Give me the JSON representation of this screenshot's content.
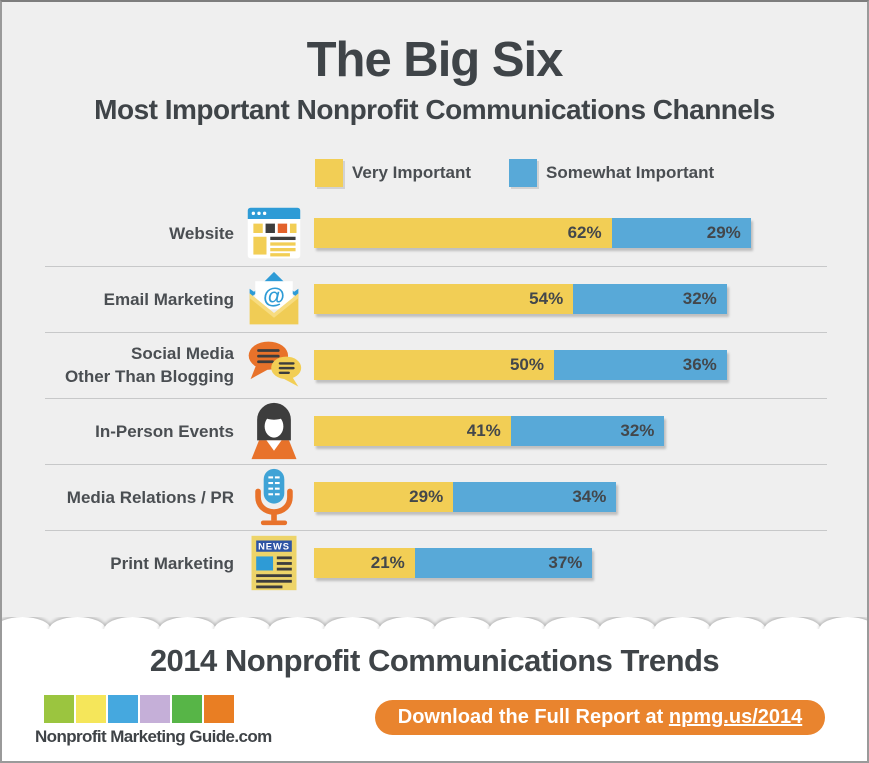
{
  "header": {
    "title": "The Big Six",
    "subtitle": "Most Important Nonprofit Communications Channels"
  },
  "chart_data": {
    "type": "bar",
    "orientation": "horizontal",
    "stacked": true,
    "unit": "percent",
    "title": "The Big Six",
    "subtitle": "Most Important Nonprofit Communications Channels",
    "grid": false,
    "legend_position": "top",
    "value_labels": "inside-right, suffixed with %",
    "xlim": [
      0,
      100
    ],
    "categories": [
      "Website",
      "Email Marketing",
      "Social Media Other Than Blogging",
      "In-Person Events",
      "Media Relations / PR",
      "Print Marketing"
    ],
    "series": [
      {
        "name": "Very Important",
        "color": "#F2CE55",
        "values": [
          62,
          54,
          50,
          41,
          29,
          21
        ]
      },
      {
        "name": "Somewhat Important",
        "color": "#58A9D8",
        "values": [
          29,
          32,
          36,
          32,
          34,
          37
        ]
      }
    ]
  },
  "rows": [
    {
      "label_lines": [
        "Website"
      ],
      "icon": "browser-icon"
    },
    {
      "label_lines": [
        "Email Marketing"
      ],
      "icon": "email-icon"
    },
    {
      "label_lines": [
        "Social Media",
        "Other Than Blogging"
      ],
      "icon": "speech-bubbles-icon"
    },
    {
      "label_lines": [
        "In-Person Events"
      ],
      "icon": "person-icon"
    },
    {
      "label_lines": [
        "Media Relations / PR"
      ],
      "icon": "microphone-icon"
    },
    {
      "label_lines": [
        "Print Marketing"
      ],
      "icon": "newspaper-icon"
    }
  ],
  "footer": {
    "title": "2014 Nonprofit Communications Trends",
    "logo": {
      "text": "Nonprofit Marketing Guide.com",
      "colors": [
        "#9BC53F",
        "#F5E65A",
        "#45A8DF",
        "#C5AFD8",
        "#57B547",
        "#E97E23"
      ]
    },
    "button": {
      "prefix": "Download the Full Report at ",
      "link": "npmg.us/2014",
      "color": "#E9842E"
    }
  },
  "colors": {
    "very_important": "#F2CE55",
    "somewhat_important": "#58A9D8",
    "accent_orange": "#E8722A",
    "button_orange": "#E9842E",
    "background": "#EFEFEF",
    "footer_background": "#FFFFFF",
    "heading_text": "#3F4448",
    "body_text": "#4A4E52"
  }
}
